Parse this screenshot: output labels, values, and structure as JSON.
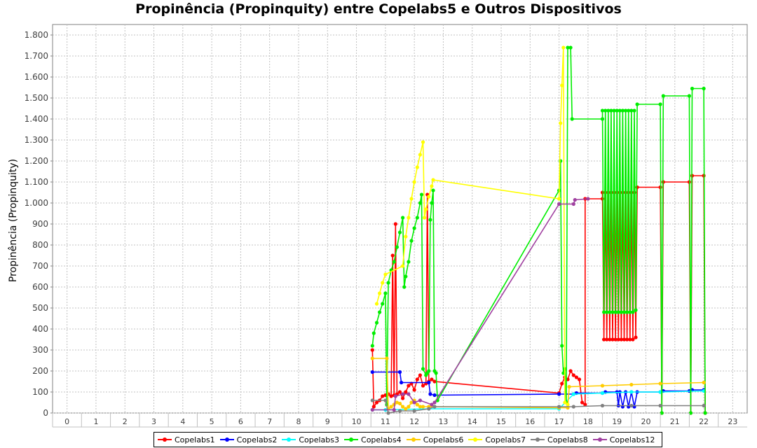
{
  "chart_data": {
    "type": "line",
    "title": "Propinência (Propinquity) entre Copelabs5 e Outros Dispositivos",
    "xlabel": "",
    "ylabel": "Propinência (Propinquity)",
    "categories": [
      "0",
      "1",
      "2",
      "3",
      "4",
      "5",
      "6",
      "7",
      "8",
      "9",
      "10",
      "11",
      "12",
      "13",
      "14",
      "15",
      "16",
      "17",
      "18",
      "19",
      "20",
      "21",
      "22",
      "23"
    ],
    "ylim": [
      0,
      1850
    ],
    "yticks": [
      0,
      100,
      200,
      300,
      400,
      500,
      600,
      700,
      800,
      900,
      1000,
      1100,
      1200,
      1300,
      1400,
      1500,
      1600,
      1700,
      1800
    ],
    "ytick_labels": [
      "0",
      "100",
      "200",
      "300",
      "400",
      "500",
      "600",
      "700",
      "800",
      "900",
      "1.000",
      "1.100",
      "1.200",
      "1.300",
      "1.400",
      "1.500",
      "1.600",
      "1.700",
      "1.800"
    ],
    "grid": true,
    "legend": "bottom",
    "series": [
      {
        "name": "Copelabs1",
        "color": "#ff0000",
        "points": [
          [
            10.55,
            300
          ],
          [
            10.6,
            30
          ],
          [
            10.7,
            50
          ],
          [
            10.8,
            60
          ],
          [
            10.9,
            80
          ],
          [
            11,
            85
          ],
          [
            11.1,
            90
          ],
          [
            11.2,
            80
          ],
          [
            11.25,
            750
          ],
          [
            11.3,
            85
          ],
          [
            11.35,
            900
          ],
          [
            11.4,
            90
          ],
          [
            11.5,
            100
          ],
          [
            11.6,
            70
          ],
          [
            11.7,
            100
          ],
          [
            11.8,
            130
          ],
          [
            11.9,
            140
          ],
          [
            12,
            110
          ],
          [
            12.1,
            160
          ],
          [
            12.2,
            180
          ],
          [
            12.3,
            130
          ],
          [
            12.4,
            140
          ],
          [
            12.45,
            1040
          ],
          [
            12.5,
            150
          ],
          [
            12.6,
            160
          ],
          [
            12.7,
            150
          ],
          [
            17,
            95
          ],
          [
            17.1,
            140
          ],
          [
            17.2,
            170
          ],
          [
            17.3,
            160
          ],
          [
            17.4,
            200
          ],
          [
            17.5,
            180
          ],
          [
            17.6,
            170
          ],
          [
            17.7,
            160
          ],
          [
            17.8,
            50
          ],
          [
            17.9,
            40
          ],
          [
            17.9,
            1020
          ],
          [
            18.5,
            1020
          ],
          [
            18.5,
            1050
          ],
          [
            18.55,
            350
          ],
          [
            18.6,
            1050
          ],
          [
            18.65,
            350
          ],
          [
            18.7,
            1050
          ],
          [
            18.75,
            350
          ],
          [
            18.8,
            1050
          ],
          [
            18.85,
            350
          ],
          [
            18.9,
            1050
          ],
          [
            18.95,
            350
          ],
          [
            19,
            1050
          ],
          [
            19.05,
            350
          ],
          [
            19.1,
            1050
          ],
          [
            19.15,
            350
          ],
          [
            19.2,
            1050
          ],
          [
            19.25,
            350
          ],
          [
            19.3,
            1050
          ],
          [
            19.35,
            350
          ],
          [
            19.4,
            1050
          ],
          [
            19.45,
            350
          ],
          [
            19.5,
            1050
          ],
          [
            19.55,
            350
          ],
          [
            19.6,
            1050
          ],
          [
            19.65,
            360
          ],
          [
            19.7,
            1075
          ],
          [
            20.5,
            1075
          ],
          [
            20.55,
            0
          ],
          [
            20.6,
            1100
          ],
          [
            21.5,
            1100
          ],
          [
            21.55,
            0
          ],
          [
            21.6,
            1130
          ],
          [
            22,
            1130
          ],
          [
            22.05,
            0
          ]
        ]
      },
      {
        "name": "Copelabs2",
        "color": "#0000ff",
        "points": [
          [
            10.55,
            195
          ],
          [
            11.5,
            195
          ],
          [
            11.55,
            145
          ],
          [
            12.5,
            145
          ],
          [
            12.55,
            90
          ],
          [
            12.7,
            85
          ],
          [
            17,
            90
          ],
          [
            17.5,
            90
          ],
          [
            17.6,
            95
          ],
          [
            18.5,
            95
          ],
          [
            18.6,
            100
          ],
          [
            19,
            100
          ],
          [
            19.05,
            35
          ],
          [
            19.1,
            100
          ],
          [
            19.2,
            30
          ],
          [
            19.3,
            100
          ],
          [
            19.4,
            30
          ],
          [
            19.5,
            100
          ],
          [
            19.6,
            30
          ],
          [
            19.7,
            100
          ],
          [
            20.5,
            100
          ],
          [
            20.6,
            105
          ],
          [
            21.5,
            105
          ],
          [
            21.6,
            110
          ],
          [
            22,
            110
          ]
        ]
      },
      {
        "name": "Copelabs3",
        "color": "#00ffff",
        "points": [
          [
            10.55,
            15
          ],
          [
            11,
            15
          ],
          [
            12.5,
            20
          ],
          [
            17,
            20
          ],
          [
            17.5,
            90
          ],
          [
            18.5,
            95
          ],
          [
            19.5,
            100
          ],
          [
            20.5,
            100
          ],
          [
            22,
            105
          ]
        ]
      },
      {
        "name": "Copelabs4",
        "color": "#00ee00",
        "points": [
          [
            10.55,
            320
          ],
          [
            10.6,
            380
          ],
          [
            10.7,
            430
          ],
          [
            10.8,
            480
          ],
          [
            10.9,
            520
          ],
          [
            11,
            570
          ],
          [
            11.05,
            40
          ],
          [
            11.1,
            620
          ],
          [
            11.2,
            680
          ],
          [
            11.3,
            720
          ],
          [
            11.4,
            790
          ],
          [
            11.5,
            860
          ],
          [
            11.6,
            930
          ],
          [
            11.65,
            600
          ],
          [
            11.7,
            650
          ],
          [
            11.8,
            720
          ],
          [
            11.9,
            820
          ],
          [
            12,
            880
          ],
          [
            12.1,
            930
          ],
          [
            12.2,
            1000
          ],
          [
            12.25,
            1040
          ],
          [
            12.3,
            210
          ],
          [
            12.4,
            180
          ],
          [
            12.45,
            190
          ],
          [
            12.5,
            200
          ],
          [
            12.55,
            920
          ],
          [
            12.6,
            1000
          ],
          [
            12.65,
            1060
          ],
          [
            12.7,
            200
          ],
          [
            12.75,
            190
          ],
          [
            12.8,
            60
          ],
          [
            17,
            1060
          ],
          [
            17.05,
            1200
          ],
          [
            17.1,
            320
          ],
          [
            17.15,
            190
          ],
          [
            17.2,
            210
          ],
          [
            17.25,
            50
          ],
          [
            17.3,
            1740
          ],
          [
            17.4,
            1740
          ],
          [
            17.45,
            1400
          ],
          [
            18.5,
            1400
          ],
          [
            18.5,
            1440
          ],
          [
            18.55,
            480
          ],
          [
            18.6,
            1440
          ],
          [
            18.65,
            480
          ],
          [
            18.7,
            1440
          ],
          [
            18.75,
            480
          ],
          [
            18.8,
            1440
          ],
          [
            18.85,
            480
          ],
          [
            18.9,
            1440
          ],
          [
            18.95,
            480
          ],
          [
            19,
            1440
          ],
          [
            19.05,
            480
          ],
          [
            19.1,
            1440
          ],
          [
            19.15,
            480
          ],
          [
            19.2,
            1440
          ],
          [
            19.25,
            480
          ],
          [
            19.3,
            1440
          ],
          [
            19.35,
            480
          ],
          [
            19.4,
            1440
          ],
          [
            19.45,
            480
          ],
          [
            19.5,
            1440
          ],
          [
            19.55,
            480
          ],
          [
            19.6,
            1440
          ],
          [
            19.65,
            490
          ],
          [
            19.7,
            1470
          ],
          [
            20.5,
            1470
          ],
          [
            20.55,
            0
          ],
          [
            20.6,
            1510
          ],
          [
            21.5,
            1510
          ],
          [
            21.55,
            0
          ],
          [
            21.6,
            1545
          ],
          [
            22,
            1545
          ],
          [
            22.05,
            0
          ]
        ]
      },
      {
        "name": "Copelabs6",
        "color": "#ffcc00",
        "points": [
          [
            10.55,
            260
          ],
          [
            11.05,
            260
          ],
          [
            11.1,
            20
          ],
          [
            11.2,
            30
          ],
          [
            11.3,
            40
          ],
          [
            11.4,
            50
          ],
          [
            11.5,
            45
          ],
          [
            11.6,
            30
          ],
          [
            11.7,
            20
          ],
          [
            11.8,
            30
          ],
          [
            11.9,
            50
          ],
          [
            12,
            60
          ],
          [
            12.1,
            40
          ],
          [
            12.2,
            30
          ],
          [
            12.3,
            30
          ],
          [
            12.5,
            30
          ],
          [
            12.7,
            30
          ],
          [
            17,
            25
          ],
          [
            17.3,
            25
          ],
          [
            17.35,
            125
          ],
          [
            18.5,
            130
          ],
          [
            19.5,
            135
          ],
          [
            20.5,
            140
          ],
          [
            22,
            145
          ]
        ]
      },
      {
        "name": "Copelabs7",
        "color": "#ffff00",
        "points": [
          [
            10.7,
            520
          ],
          [
            10.8,
            570
          ],
          [
            10.9,
            620
          ],
          [
            11,
            660
          ],
          [
            11.6,
            700
          ],
          [
            11.7,
            840
          ],
          [
            11.8,
            930
          ],
          [
            11.9,
            1020
          ],
          [
            12,
            1100
          ],
          [
            12.1,
            1170
          ],
          [
            12.2,
            1230
          ],
          [
            12.3,
            1290
          ],
          [
            12.35,
            930
          ],
          [
            12.4,
            970
          ],
          [
            12.5,
            1030
          ],
          [
            12.6,
            1080
          ],
          [
            12.65,
            1110
          ],
          [
            17,
            1020
          ],
          [
            17.05,
            1380
          ],
          [
            17.1,
            1560
          ],
          [
            17.15,
            1740
          ],
          [
            17.2,
            50
          ],
          [
            17.3,
            40
          ]
        ]
      },
      {
        "name": "Copelabs8",
        "color": "#808080",
        "points": [
          [
            10.55,
            60
          ],
          [
            11,
            60
          ],
          [
            11.1,
            0
          ],
          [
            11.5,
            10
          ],
          [
            12,
            10
          ],
          [
            12.5,
            20
          ],
          [
            12.7,
            30
          ],
          [
            17,
            30
          ],
          [
            17.5,
            30
          ],
          [
            18.5,
            35
          ],
          [
            19.5,
            35
          ],
          [
            20.5,
            35
          ],
          [
            22,
            35
          ]
        ]
      },
      {
        "name": "Copelabs12",
        "color": "#a040a0",
        "points": [
          [
            10.55,
            15
          ],
          [
            11.3,
            15
          ],
          [
            11.35,
            80
          ],
          [
            11.6,
            90
          ],
          [
            11.8,
            90
          ],
          [
            12,
            50
          ],
          [
            12.2,
            60
          ],
          [
            12.6,
            40
          ],
          [
            12.7,
            50
          ],
          [
            17,
            995
          ],
          [
            17.5,
            995
          ],
          [
            17.55,
            1015
          ],
          [
            18,
            1020
          ]
        ]
      }
    ]
  }
}
